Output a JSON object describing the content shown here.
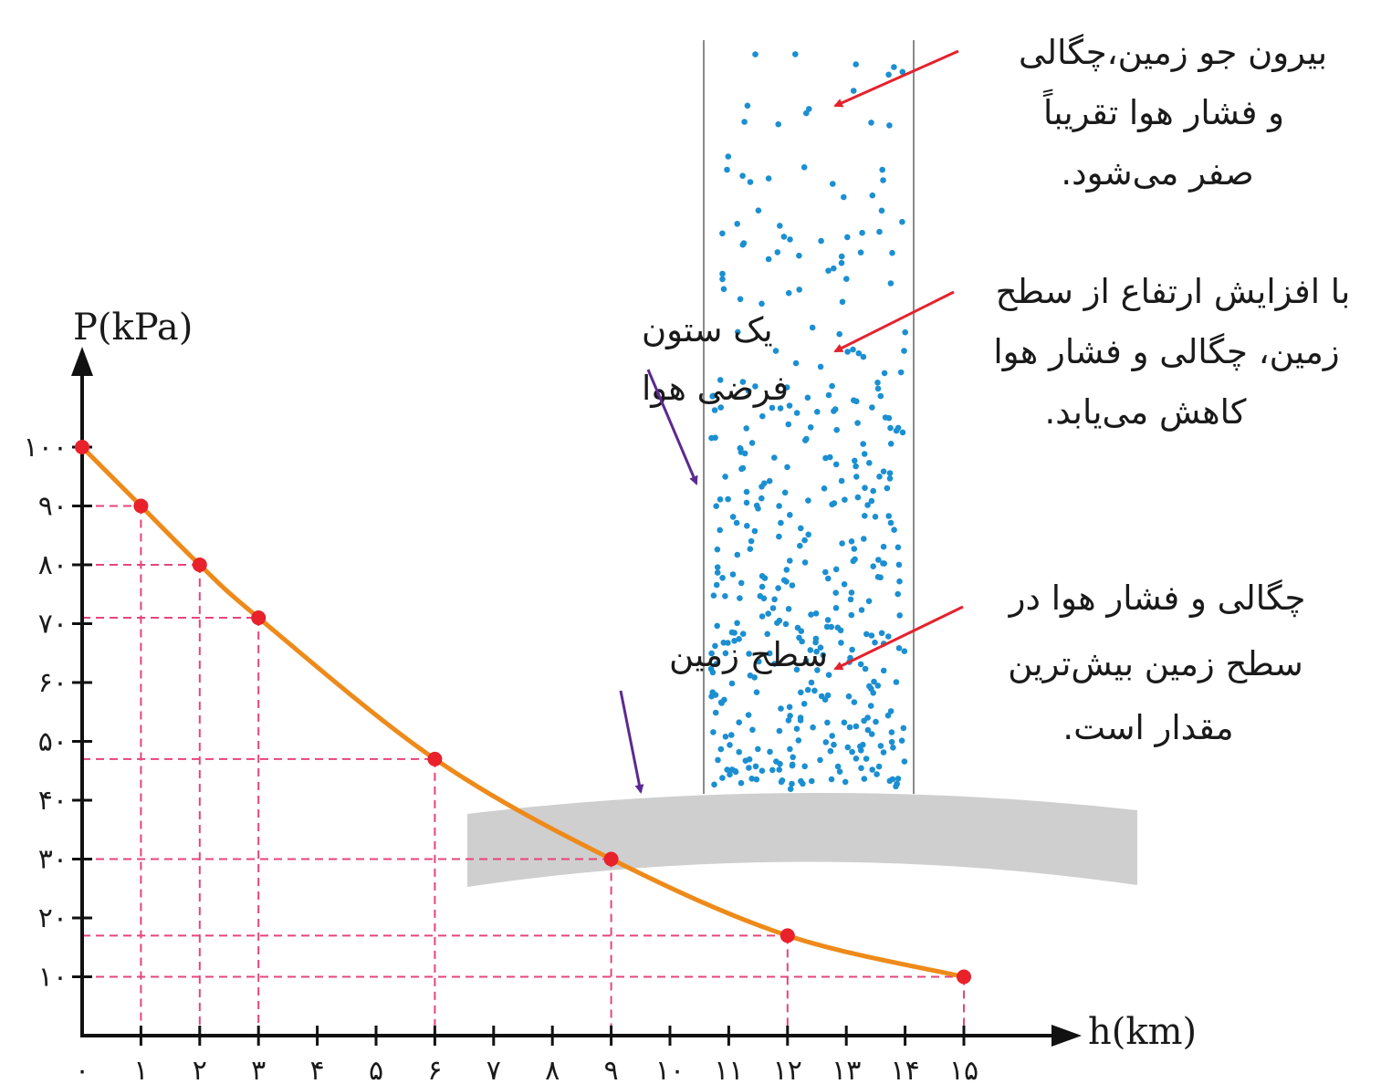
{
  "chart_data": {
    "type": "line",
    "xlabel": "h(km)",
    "ylabel": "P(kPa)",
    "xlim": [
      0,
      16
    ],
    "ylim": [
      0,
      105
    ],
    "x_ticks": [
      0,
      1,
      2,
      3,
      4,
      5,
      6,
      7,
      8,
      9,
      10,
      11,
      12,
      13,
      14,
      15
    ],
    "x_tick_labels": [
      "۰",
      "۱",
      "۲",
      "۳",
      "۴",
      "۵",
      "۶",
      "۷",
      "۸",
      "۹",
      "۱۰",
      "۱۱",
      "۱۲",
      "۱۳",
      "۱۴",
      "۱۵"
    ],
    "y_ticks": [
      10,
      20,
      30,
      40,
      50,
      60,
      70,
      80,
      90,
      100
    ],
    "y_tick_labels": [
      "۱۰",
      "۲۰",
      "۳۰",
      "۴۰",
      "۵۰",
      "۶۰",
      "۷۰",
      "۸۰",
      "۹۰",
      "۱۰۰"
    ],
    "series": [
      {
        "x": [
          0,
          1,
          2,
          3,
          6,
          9,
          12,
          15
        ],
        "y": [
          100,
          90,
          80,
          71,
          47,
          30,
          17,
          10
        ],
        "color": "#ee8a1a",
        "marker_color": "#e8212a"
      }
    ],
    "guide_line_color": "#e5457a",
    "grid": false
  },
  "annotations": {
    "top": [
      "بیرون جو زمین،چگالی",
      "و فشار هوا تقریباً",
      "صفر می‌شود."
    ],
    "middle": [
      "با افزایش ارتفاع از سطح",
      "زمین، چگالی و فشار هوا",
      "کاهش می‌یابد."
    ],
    "bottom": [
      "چگالی و فشار هوا در",
      "سطح زمین بیش‌ترین",
      "مقدار است."
    ],
    "column": [
      "یک ستون",
      "فرضی هوا"
    ],
    "ground": "سطح زمین"
  },
  "colors": {
    "particles": "#1b8fd1",
    "ground": "#cfcfcf",
    "red_arrow": "#e4222d",
    "purple_arrow": "#5b2a90",
    "column_wall": "#8a8a8a"
  }
}
